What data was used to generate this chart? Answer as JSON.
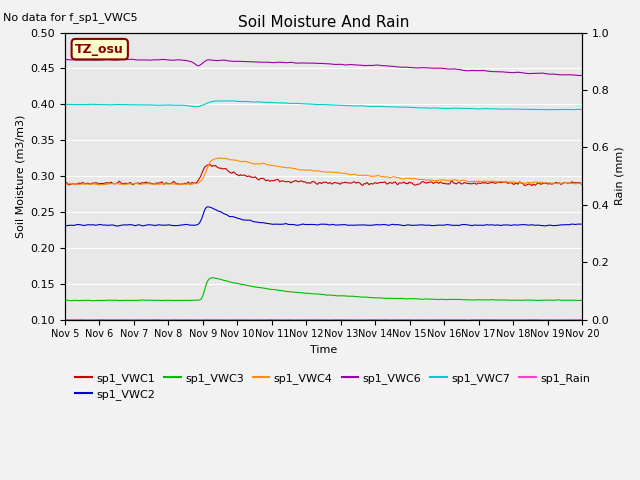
{
  "title": "Soil Moisture And Rain",
  "subtitle": "No data for f_sp1_VWC5",
  "xlabel": "Time",
  "ylabel_left": "Soil Moisture (m3/m3)",
  "ylabel_right": "Rain (mm)",
  "ylim_left": [
    0.1,
    0.5
  ],
  "ylim_right": [
    0.0,
    1.0
  ],
  "xlim": [
    0,
    15
  ],
  "annotation_text": "TZ_osu",
  "annotation_bg": "#ffffcc",
  "annotation_border": "#8b0000",
  "annotation_text_color": "#8b0000",
  "xtick_labels": [
    "Nov 5",
    "Nov 6",
    "Nov 7",
    "Nov 8",
    "Nov 9",
    "Nov 10",
    "Nov 11",
    "Nov 12",
    "Nov 13",
    "Nov 14",
    "Nov 15",
    "Nov 16",
    "Nov 17",
    "Nov 18",
    "Nov 19",
    "Nov 20"
  ],
  "background_color": "#e8e8e8",
  "fig_bg": "#f2f2f2",
  "colors": {
    "VWC1": "#cc0000",
    "VWC2": "#0000cc",
    "VWC3": "#00bb00",
    "VWC4": "#ff8c00",
    "VWC6": "#9900aa",
    "VWC7": "#00cccc",
    "Rain": "#ff44cc"
  }
}
